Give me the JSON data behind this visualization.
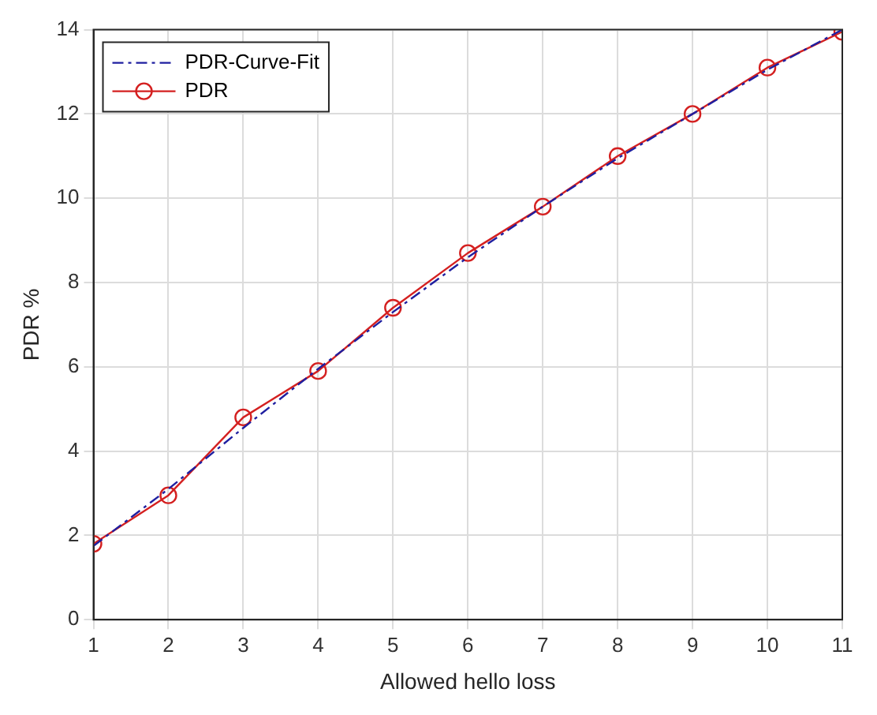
{
  "chart_data": {
    "type": "line",
    "xlabel": "Allowed hello loss",
    "ylabel": "PDR %",
    "x": [
      1,
      2,
      3,
      4,
      5,
      6,
      7,
      8,
      9,
      10,
      11
    ],
    "series": [
      {
        "name": "PDR-Curve-Fit",
        "color": "#1f1fa0",
        "line_style": "dashed",
        "marker": "none",
        "values": [
          1.75,
          3.1,
          4.55,
          5.95,
          7.3,
          8.6,
          9.8,
          10.95,
          12.0,
          13.05,
          14.0
        ]
      },
      {
        "name": "PDR",
        "color": "#d42020",
        "line_style": "solid",
        "marker": "circle",
        "values": [
          1.8,
          2.95,
          4.8,
          5.9,
          7.4,
          8.7,
          9.8,
          11.0,
          12.0,
          13.1,
          13.95
        ]
      }
    ],
    "xlim": [
      1,
      11
    ],
    "xticks": [
      1,
      2,
      3,
      4,
      5,
      6,
      7,
      8,
      9,
      10,
      11
    ],
    "ylim": [
      0,
      14
    ],
    "yticks": [
      0,
      2,
      4,
      6,
      8,
      10,
      12,
      14
    ],
    "grid": true,
    "legend": "top left"
  }
}
